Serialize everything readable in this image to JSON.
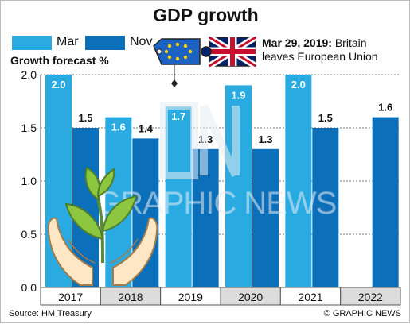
{
  "title": "GDP growth",
  "legend": [
    {
      "label": "Mar",
      "color": "#29abe2"
    },
    {
      "label": "Nov",
      "color": "#0b6fba"
    }
  ],
  "ylabel": "Growth forecast %",
  "annotation": {
    "date": "Mar 29, 2019:",
    "text1": "Britain",
    "text2": "leaves European Union"
  },
  "source": "Source: HM Treasury",
  "credit": "© GRAPHIC NEWS",
  "watermark": "GRAPHIC NEWS",
  "chart_data": {
    "type": "bar",
    "title": "GDP growth",
    "ylabel": "Growth forecast %",
    "categories": [
      "2017",
      "2018",
      "2019",
      "2020",
      "2021",
      "2022"
    ],
    "series": [
      {
        "name": "Mar",
        "values": [
          2.0,
          1.6,
          1.7,
          1.9,
          2.0,
          null
        ],
        "color": "#29abe2"
      },
      {
        "name": "Nov",
        "values": [
          1.5,
          1.4,
          1.3,
          1.3,
          1.5,
          1.6
        ],
        "color": "#0b6fba"
      }
    ],
    "ylim": [
      0,
      2.0
    ],
    "yticks": [
      "0.0",
      "0.5",
      "1.0",
      "1.5",
      "2.0"
    ],
    "grid": true,
    "legend": "top-left"
  }
}
